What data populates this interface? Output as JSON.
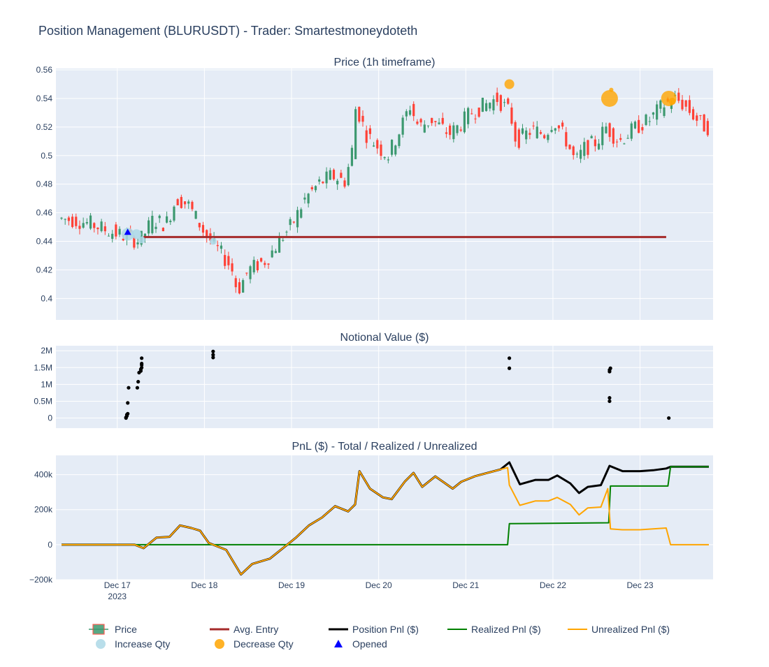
{
  "title": "Position Management (BLURUSDT) - Trader: Smartestmoneydoteth",
  "colors": {
    "increasing": "#3D9970",
    "decreasing": "#FF4136",
    "avg_entry": "#A52A2A",
    "position_pnl": "#000000",
    "realized_pnl": "#008000",
    "unrealized_pnl": "#FFA500",
    "increase_qty": "#ADD8E6",
    "decrease_qty": "#FFA500",
    "opened": "#0000FF",
    "plot_bg": "#E5ECF6"
  },
  "x_ticks": [
    {
      "label": "Dec 17",
      "sub": "2023"
    },
    {
      "label": "Dec 18",
      "sub": ""
    },
    {
      "label": "Dec 19",
      "sub": ""
    },
    {
      "label": "Dec 20",
      "sub": ""
    },
    {
      "label": "Dec 21",
      "sub": ""
    },
    {
      "label": "Dec 22",
      "sub": ""
    },
    {
      "label": "Dec 23",
      "sub": ""
    }
  ],
  "legend": [
    {
      "key": "price",
      "label": "Price",
      "icon": "candlestick-icon"
    },
    {
      "key": "avg_entry",
      "label": "Avg. Entry",
      "icon": "line-icon"
    },
    {
      "key": "position_pnl",
      "label": "Position Pnl ($)",
      "icon": "line-icon"
    },
    {
      "key": "realized_pnl",
      "label": "Realized Pnl ($)",
      "icon": "line-icon"
    },
    {
      "key": "unrealized_pnl",
      "label": "Unrealized Pnl ($)",
      "icon": "line-icon"
    },
    {
      "key": "increase_qty",
      "label": "Increase Qty",
      "icon": "circle-icon"
    },
    {
      "key": "decrease_qty",
      "label": "Decrease Qty",
      "icon": "circle-icon"
    },
    {
      "key": "opened",
      "label": "Opened",
      "icon": "triangle-icon"
    }
  ],
  "chart_data": [
    {
      "type": "candlestick",
      "title": "Price (1h timeframe)",
      "y_ticks": [
        "0.4",
        "0.42",
        "0.44",
        "0.46",
        "0.48",
        "0.5",
        "0.52",
        "0.54",
        "0.56"
      ],
      "ylim": [
        0.385,
        0.561
      ],
      "x_range_days": [
        16.36,
        23.79
      ],
      "price_path": [
        [
          16.36,
          0.456
        ],
        [
          16.55,
          0.455
        ],
        [
          16.75,
          0.452
        ],
        [
          16.95,
          0.447
        ],
        [
          17.1,
          0.444
        ],
        [
          17.3,
          0.44
        ],
        [
          17.45,
          0.455
        ],
        [
          17.6,
          0.452
        ],
        [
          17.72,
          0.47
        ],
        [
          17.85,
          0.466
        ],
        [
          17.95,
          0.456
        ],
        [
          18.05,
          0.445
        ],
        [
          18.25,
          0.43
        ],
        [
          18.35,
          0.422
        ],
        [
          18.42,
          0.405
        ],
        [
          18.55,
          0.42
        ],
        [
          18.75,
          0.427
        ],
        [
          18.9,
          0.44
        ],
        [
          19.05,
          0.452
        ],
        [
          19.2,
          0.47
        ],
        [
          19.35,
          0.48
        ],
        [
          19.5,
          0.486
        ],
        [
          19.65,
          0.482
        ],
        [
          19.73,
          0.5
        ],
        [
          19.78,
          0.535
        ],
        [
          19.9,
          0.515
        ],
        [
          20.05,
          0.505
        ],
        [
          20.15,
          0.5
        ],
        [
          20.3,
          0.52
        ],
        [
          20.4,
          0.535
        ],
        [
          20.5,
          0.52
        ],
        [
          20.65,
          0.525
        ],
        [
          20.85,
          0.515
        ],
        [
          20.95,
          0.52
        ],
        [
          21.1,
          0.53
        ],
        [
          21.25,
          0.535
        ],
        [
          21.4,
          0.54
        ],
        [
          21.55,
          0.53
        ],
        [
          21.62,
          0.51
        ],
        [
          21.8,
          0.518
        ],
        [
          21.95,
          0.515
        ],
        [
          22.05,
          0.525
        ],
        [
          22.2,
          0.51
        ],
        [
          22.3,
          0.495
        ],
        [
          22.4,
          0.505
        ],
        [
          22.55,
          0.51
        ],
        [
          22.65,
          0.52
        ],
        [
          22.8,
          0.51
        ],
        [
          23.0,
          0.52
        ],
        [
          23.15,
          0.525
        ],
        [
          23.3,
          0.535
        ],
        [
          23.45,
          0.54
        ],
        [
          23.55,
          0.535
        ],
        [
          23.7,
          0.525
        ],
        [
          23.79,
          0.52
        ]
      ],
      "avg_entry": {
        "value": 0.443,
        "x_start": 17.3,
        "x_end": 23.3
      },
      "increase_qty": [
        {
          "x": 17.12,
          "y": 0.445,
          "size": 18
        },
        {
          "x": 17.22,
          "y": 0.445,
          "size": 14
        },
        {
          "x": 17.28,
          "y": 0.441,
          "size": 10
        },
        {
          "x": 18.1,
          "y": 0.44,
          "size": 10
        }
      ],
      "decrease_qty": [
        {
          "x": 21.5,
          "y": 0.55,
          "size": 14
        },
        {
          "x": 22.65,
          "y": 0.54,
          "size": 24
        },
        {
          "x": 22.67,
          "y": 0.546,
          "size": 6
        },
        {
          "x": 23.33,
          "y": 0.54,
          "size": 22
        },
        {
          "x": 23.37,
          "y": 0.538,
          "size": 10
        }
      ],
      "opened": [
        {
          "x": 17.12,
          "y": 0.445
        }
      ]
    },
    {
      "type": "scatter",
      "title": "Notional Value ($)",
      "y_ticks": [
        "0",
        "0.5M",
        "1M",
        "1.5M",
        "2M"
      ],
      "ylim": [
        -300000,
        2150000
      ],
      "points": [
        [
          17.1,
          0
        ],
        [
          17.1,
          20000
        ],
        [
          17.11,
          60000
        ],
        [
          17.11,
          100000
        ],
        [
          17.12,
          130000
        ],
        [
          17.12,
          450000
        ],
        [
          17.13,
          900000
        ],
        [
          17.23,
          900000
        ],
        [
          17.24,
          1080000
        ],
        [
          17.25,
          1350000
        ],
        [
          17.27,
          1400000
        ],
        [
          17.27,
          1450000
        ],
        [
          17.28,
          1500000
        ],
        [
          17.28,
          1580000
        ],
        [
          17.28,
          1620000
        ],
        [
          17.28,
          1780000
        ],
        [
          18.1,
          1800000
        ],
        [
          18.1,
          1880000
        ],
        [
          18.1,
          1980000
        ],
        [
          21.5,
          1780000
        ],
        [
          21.5,
          1480000
        ],
        [
          22.65,
          1380000
        ],
        [
          22.65,
          1430000
        ],
        [
          22.66,
          1480000
        ],
        [
          22.65,
          600000
        ],
        [
          22.65,
          500000
        ],
        [
          23.33,
          0
        ]
      ]
    },
    {
      "type": "line",
      "title": "PnL ($) - Total / Realized / Unrealized",
      "y_ticks": [
        "−200k",
        "0",
        "200k",
        "400k"
      ],
      "ylim": [
        -200000,
        510000
      ],
      "series": [
        {
          "name": "Position Pnl ($)",
          "points": [
            [
              16.36,
              0
            ],
            [
              17.0,
              0
            ],
            [
              17.2,
              0
            ],
            [
              17.3,
              -20000
            ],
            [
              17.45,
              40000
            ],
            [
              17.6,
              45000
            ],
            [
              17.72,
              110000
            ],
            [
              17.85,
              95000
            ],
            [
              17.95,
              80000
            ],
            [
              18.05,
              10000
            ],
            [
              18.25,
              -30000
            ],
            [
              18.42,
              -170000
            ],
            [
              18.55,
              -110000
            ],
            [
              18.75,
              -80000
            ],
            [
              18.9,
              -20000
            ],
            [
              19.05,
              40000
            ],
            [
              19.2,
              110000
            ],
            [
              19.35,
              155000
            ],
            [
              19.5,
              220000
            ],
            [
              19.65,
              190000
            ],
            [
              19.73,
              230000
            ],
            [
              19.78,
              420000
            ],
            [
              19.9,
              320000
            ],
            [
              20.05,
              270000
            ],
            [
              20.15,
              260000
            ],
            [
              20.3,
              360000
            ],
            [
              20.4,
              410000
            ],
            [
              20.5,
              330000
            ],
            [
              20.65,
              390000
            ],
            [
              20.85,
              320000
            ],
            [
              20.95,
              360000
            ],
            [
              21.1,
              390000
            ],
            [
              21.25,
              410000
            ],
            [
              21.4,
              430000
            ],
            [
              21.5,
              470000
            ],
            [
              21.62,
              345000
            ],
            [
              21.8,
              370000
            ],
            [
              21.95,
              370000
            ],
            [
              22.05,
              395000
            ],
            [
              22.2,
              350000
            ],
            [
              22.3,
              295000
            ],
            [
              22.4,
              330000
            ],
            [
              22.55,
              340000
            ],
            [
              22.65,
              450000
            ],
            [
              22.8,
              420000
            ],
            [
              23.0,
              420000
            ],
            [
              23.15,
              425000
            ],
            [
              23.3,
              435000
            ],
            [
              23.35,
              445000
            ],
            [
              23.79,
              445000
            ]
          ]
        },
        {
          "name": "Realized Pnl ($)",
          "points": [
            [
              16.36,
              0
            ],
            [
              21.48,
              0
            ],
            [
              21.5,
              120000
            ],
            [
              22.64,
              125000
            ],
            [
              22.66,
              335000
            ],
            [
              23.32,
              335000
            ],
            [
              23.35,
              445000
            ],
            [
              23.79,
              445000
            ]
          ]
        },
        {
          "name": "Unrealized Pnl ($)",
          "points": [
            [
              16.36,
              0
            ],
            [
              17.0,
              0
            ],
            [
              17.2,
              0
            ],
            [
              17.3,
              -20000
            ],
            [
              17.45,
              40000
            ],
            [
              17.6,
              45000
            ],
            [
              17.72,
              110000
            ],
            [
              17.85,
              95000
            ],
            [
              17.95,
              80000
            ],
            [
              18.05,
              10000
            ],
            [
              18.25,
              -30000
            ],
            [
              18.42,
              -170000
            ],
            [
              18.55,
              -110000
            ],
            [
              18.75,
              -80000
            ],
            [
              18.9,
              -20000
            ],
            [
              19.05,
              40000
            ],
            [
              19.2,
              110000
            ],
            [
              19.35,
              155000
            ],
            [
              19.5,
              220000
            ],
            [
              19.65,
              190000
            ],
            [
              19.73,
              230000
            ],
            [
              19.78,
              420000
            ],
            [
              19.9,
              320000
            ],
            [
              20.05,
              270000
            ],
            [
              20.15,
              260000
            ],
            [
              20.3,
              360000
            ],
            [
              20.4,
              410000
            ],
            [
              20.5,
              330000
            ],
            [
              20.65,
              390000
            ],
            [
              20.85,
              320000
            ],
            [
              20.95,
              360000
            ],
            [
              21.1,
              390000
            ],
            [
              21.25,
              410000
            ],
            [
              21.4,
              430000
            ],
            [
              21.48,
              440000
            ],
            [
              21.5,
              340000
            ],
            [
              21.62,
              225000
            ],
            [
              21.8,
              250000
            ],
            [
              21.95,
              250000
            ],
            [
              22.05,
              270000
            ],
            [
              22.2,
              230000
            ],
            [
              22.3,
              170000
            ],
            [
              22.4,
              210000
            ],
            [
              22.55,
              215000
            ],
            [
              22.63,
              320000
            ],
            [
              22.66,
              90000
            ],
            [
              22.8,
              85000
            ],
            [
              23.0,
              85000
            ],
            [
              23.15,
              90000
            ],
            [
              23.3,
              95000
            ],
            [
              23.35,
              0
            ],
            [
              23.79,
              0
            ]
          ]
        }
      ]
    }
  ]
}
